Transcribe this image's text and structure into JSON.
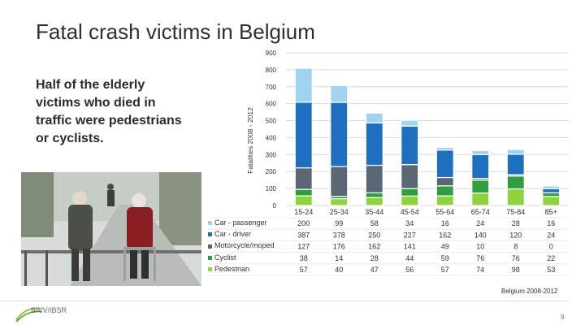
{
  "slide": {
    "title": "Fatal crash victims in Belgium",
    "lead_text": "Half of the elderly victims who died in traffic were pedestrians or cyclists.",
    "source_note": "Belgium 2008-2012",
    "page_number": "9",
    "logo_text": "BIVV/IBSR"
  },
  "colors": {
    "Car - passenger": "#9fd3f0",
    "Car - driver": "#1f6fbf",
    "Motorcycle/moped": "#5b6675",
    "Cyclist": "#2e9e3e",
    "Pedestrian": "#8cd33c"
  },
  "chart_data": {
    "type": "bar",
    "stacked": true,
    "ylabel": "Fatalities 2008 - 2012",
    "ylim": [
      0,
      900
    ],
    "yticks": [
      0,
      100,
      200,
      300,
      400,
      500,
      600,
      700,
      800,
      900
    ],
    "categories": [
      "15-24",
      "25-34",
      "35-44",
      "45-54",
      "55-64",
      "65-74",
      "75-84",
      "85+"
    ],
    "series": [
      {
        "name": "Car - passenger",
        "values": [
          200,
          99,
          58,
          34,
          16,
          24,
          28,
          16
        ]
      },
      {
        "name": "Car - driver",
        "values": [
          387,
          378,
          250,
          227,
          162,
          140,
          120,
          24
        ]
      },
      {
        "name": "Motorcycle/moped",
        "values": [
          127,
          176,
          162,
          141,
          49,
          10,
          8,
          0
        ]
      },
      {
        "name": "Cyclist",
        "values": [
          38,
          14,
          28,
          44,
          59,
          76,
          76,
          22
        ]
      },
      {
        "name": "Pedestrian",
        "values": [
          57,
          40,
          47,
          56,
          57,
          74,
          98,
          53
        ]
      }
    ],
    "table": true,
    "grid": true
  }
}
